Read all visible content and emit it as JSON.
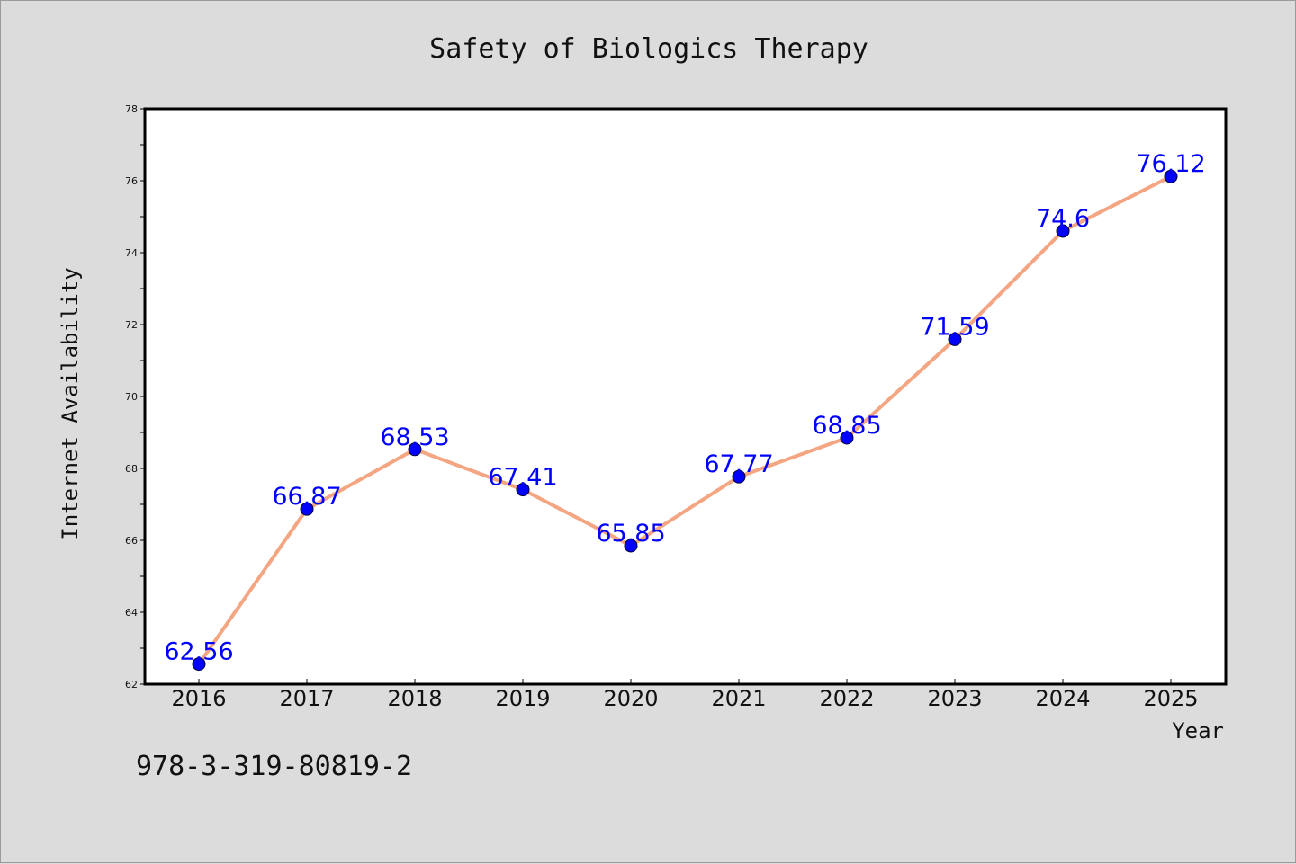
{
  "colors": {
    "background": "#dcdcdc",
    "plot_background": "#ffffff",
    "line": "#f4a582",
    "marker": "#0000ff",
    "data_label": "#0000ff",
    "axis": "#000000"
  },
  "footer": {
    "code": "978-3-319-80819-2"
  },
  "chart_data": {
    "type": "line",
    "title": "Safety of Biologics Therapy",
    "xlabel": "Year",
    "ylabel": "Internet Availability",
    "categories": [
      "2016",
      "2017",
      "2018",
      "2019",
      "2020",
      "2021",
      "2022",
      "2023",
      "2024",
      "2025"
    ],
    "series": [
      {
        "values": [
          62.56,
          66.87,
          68.53,
          67.41,
          65.85,
          67.77,
          68.85,
          71.59,
          74.6,
          76.12
        ],
        "data_labels": [
          "62.56",
          "66.87",
          "68.53",
          "67.41",
          "65.85",
          "67.77",
          "68.85",
          "71.59",
          "74.6",
          "76.12"
        ]
      }
    ],
    "ylim": [
      62,
      78
    ],
    "yticks": [
      "62",
      "64",
      "66",
      "68",
      "70",
      "72",
      "74",
      "76",
      "78"
    ],
    "grid": false,
    "legend": "none"
  }
}
